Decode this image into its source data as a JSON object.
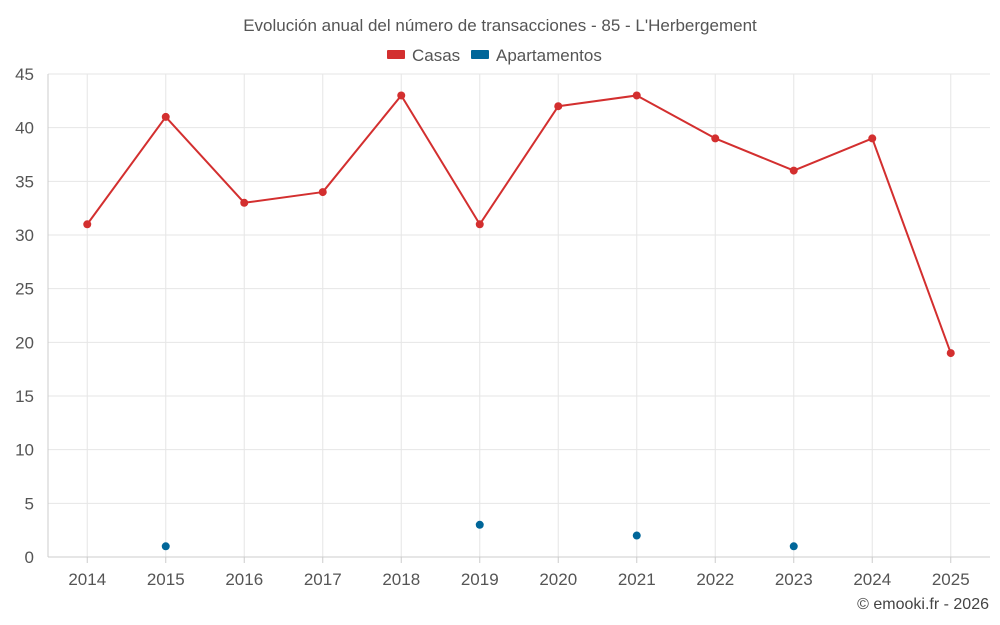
{
  "chart_data": {
    "type": "line",
    "title": "Evolución anual del número de transacciones - 85 - L'Herbergement",
    "categories": [
      "2014",
      "2015",
      "2016",
      "2017",
      "2018",
      "2019",
      "2020",
      "2021",
      "2022",
      "2023",
      "2024",
      "2025"
    ],
    "series": [
      {
        "name": "Casas",
        "color": "#d32f2f",
        "values": [
          31,
          41,
          33,
          34,
          43,
          31,
          42,
          43,
          39,
          36,
          39,
          19
        ]
      },
      {
        "name": "Apartamentos",
        "color": "#006699",
        "values": [
          null,
          1,
          null,
          null,
          null,
          3,
          null,
          2,
          null,
          1,
          null,
          null
        ]
      }
    ],
    "ylim": [
      0,
      45
    ],
    "yticks": [
      0,
      5,
      10,
      15,
      20,
      25,
      30,
      35,
      40,
      45
    ],
    "xlabel": "",
    "ylabel": "",
    "grid": true,
    "legend_position": "top-center"
  },
  "credit": "© emooki.fr - 2026"
}
